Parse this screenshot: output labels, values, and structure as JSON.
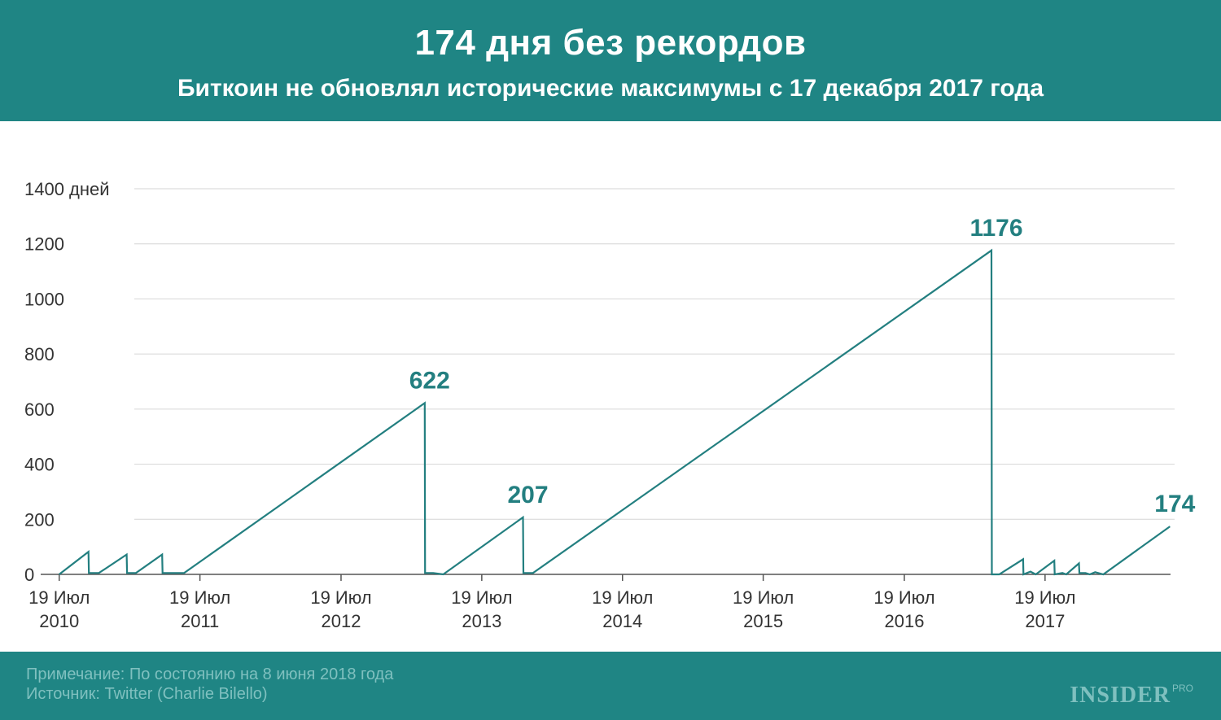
{
  "header": {
    "title": "174 дня без рекордов",
    "subtitle": "Биткоин не обновлял исторические максимумы с 17 декабря 2017 года"
  },
  "footer": {
    "note": "Примечание: По состоянию на 8 июня 2018 года",
    "source": "Источник: Twitter (Charlie Bilello)",
    "logo_main": "INSIDER",
    "logo_pro": "PRO"
  },
  "colors": {
    "brand": "#1f8584",
    "line": "#237f80",
    "grid": "#d6d6d6",
    "axis_text": "#333333",
    "footer_text": "#7fc0bf"
  },
  "chart_data": {
    "type": "line",
    "title": "174 дня без рекордов",
    "ylabel": "",
    "ylim": [
      0,
      1400
    ],
    "y_ticks": [
      {
        "value": 0,
        "label": "0"
      },
      {
        "value": 200,
        "label": "200"
      },
      {
        "value": 400,
        "label": "400"
      },
      {
        "value": 600,
        "label": "600"
      },
      {
        "value": 800,
        "label": "800"
      },
      {
        "value": 1000,
        "label": "1000"
      },
      {
        "value": 1200,
        "label": "1200"
      },
      {
        "value": 1400,
        "label": "1400 дней"
      }
    ],
    "x_ticks": [
      {
        "date": "2010-07-19",
        "line1": "19 Июл",
        "line2": "2010"
      },
      {
        "date": "2011-07-19",
        "line1": "19 Июл",
        "line2": "2011"
      },
      {
        "date": "2012-07-19",
        "line1": "19 Июл",
        "line2": "2012"
      },
      {
        "date": "2013-07-19",
        "line1": "19 Июл",
        "line2": "2013"
      },
      {
        "date": "2014-07-19",
        "line1": "19 Июл",
        "line2": "2014"
      },
      {
        "date": "2015-07-19",
        "line1": "19 Июл",
        "line2": "2015"
      },
      {
        "date": "2016-07-19",
        "line1": "19 Июл",
        "line2": "2016"
      },
      {
        "date": "2017-07-19",
        "line1": "19 Июл",
        "line2": "2017"
      }
    ],
    "xlim": [
      "2010-06-01",
      "2018-06-20"
    ],
    "grid": true,
    "series": [
      {
        "points": [
          [
            "2010-07-19",
            0
          ],
          [
            "2010-10-03",
            82
          ],
          [
            "2010-10-04",
            5
          ],
          [
            "2010-10-30",
            5
          ],
          [
            "2011-01-10",
            72
          ],
          [
            "2011-01-11",
            5
          ],
          [
            "2011-02-03",
            5
          ],
          [
            "2011-04-12",
            72
          ],
          [
            "2011-04-13",
            5
          ],
          [
            "2011-06-08",
            5
          ],
          [
            "2013-02-21",
            622
          ],
          [
            "2013-02-22",
            5
          ],
          [
            "2013-03-15",
            5
          ],
          [
            "2013-04-10",
            0
          ],
          [
            "2013-11-03",
            207
          ],
          [
            "2013-11-04",
            5
          ],
          [
            "2013-11-29",
            5
          ],
          [
            "2017-03-02",
            1176
          ],
          [
            "2017-03-03",
            0
          ],
          [
            "2017-03-22",
            0
          ],
          [
            "2017-05-23",
            55
          ],
          [
            "2017-05-24",
            0
          ],
          [
            "2017-06-11",
            10
          ],
          [
            "2017-06-25",
            0
          ],
          [
            "2017-08-12",
            50
          ],
          [
            "2017-08-13",
            0
          ],
          [
            "2017-09-02",
            5
          ],
          [
            "2017-09-12",
            0
          ],
          [
            "2017-10-15",
            40
          ],
          [
            "2017-10-16",
            5
          ],
          [
            "2017-11-01",
            5
          ],
          [
            "2017-11-12",
            0
          ],
          [
            "2017-11-26",
            8
          ],
          [
            "2017-12-17",
            0
          ],
          [
            "2018-06-08",
            174
          ]
        ]
      }
    ],
    "annotations": [
      {
        "date": "2013-02-21",
        "value": 622,
        "label": "622"
      },
      {
        "date": "2013-11-03",
        "value": 207,
        "label": "207"
      },
      {
        "date": "2017-03-02",
        "value": 1176,
        "label": "1176"
      },
      {
        "date": "2018-06-08",
        "value": 174,
        "label": "174"
      }
    ]
  }
}
